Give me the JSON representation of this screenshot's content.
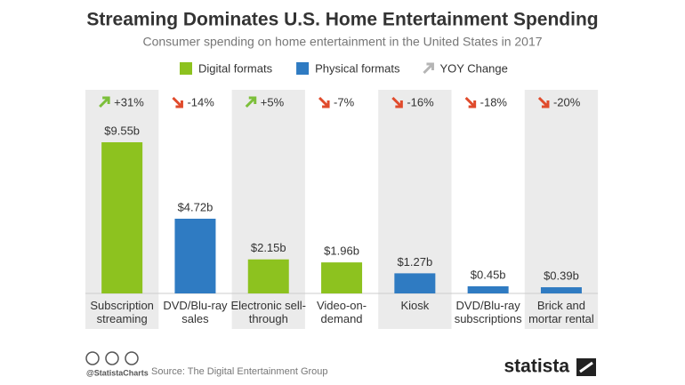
{
  "chart_data": {
    "type": "bar",
    "title": "Streaming Dominates U.S. Home Entertainment Spending",
    "subtitle": "Consumer spending on home entertainment in the United States in 2017",
    "categories": [
      "Subscription streaming",
      "DVD/Blu-ray sales",
      "Electronic sell-through",
      "Video-on-demand",
      "Kiosk",
      "DVD/Blu-ray subscriptions",
      "Brick and mortar rental"
    ],
    "series": [
      {
        "name": "Digital formats",
        "color": "#8dc21f",
        "values": [
          9.55,
          null,
          2.15,
          1.96,
          null,
          null,
          null
        ],
        "value_labels": [
          "$9.55b",
          null,
          "$2.15b",
          "$1.96b",
          null,
          null,
          null
        ]
      },
      {
        "name": "Physical formats",
        "color": "#2f7bc2",
        "values": [
          null,
          4.72,
          null,
          null,
          1.27,
          0.45,
          0.39
        ],
        "value_labels": [
          null,
          "$4.72b",
          null,
          null,
          "$1.27b",
          "$0.45b",
          "$0.39b"
        ]
      }
    ],
    "yoy": {
      "name": "YOY Change",
      "color": "#b5b5b5",
      "up_color": "#7cbf3a",
      "down_color": "#e04b2c",
      "values": [
        31,
        -14,
        5,
        -7,
        -16,
        -18,
        -20
      ],
      "value_labels": [
        "+31%",
        "-14%",
        "+5%",
        "-7%",
        "-16%",
        "-18%",
        "-20%"
      ]
    },
    "footer": {
      "handle": "@StatistaCharts",
      "source": "Source: The Digital Entertainment Group",
      "brand": "statista"
    }
  }
}
